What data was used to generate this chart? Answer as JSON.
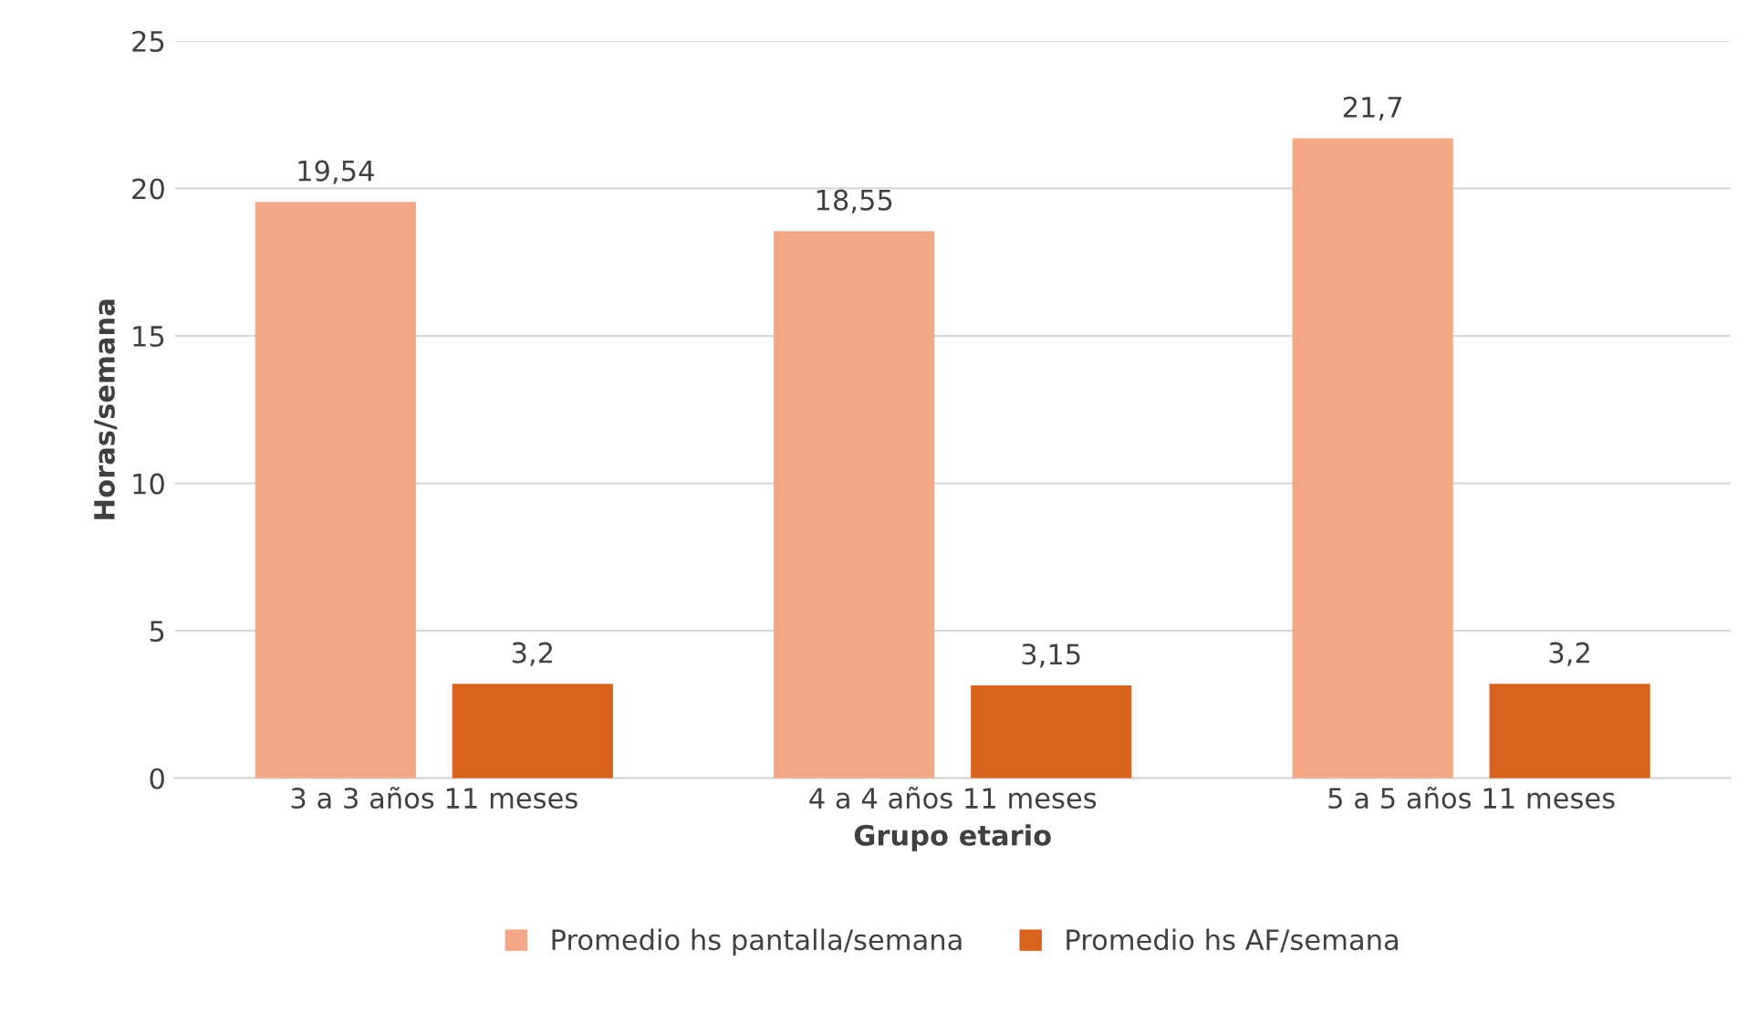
{
  "chart_data": {
    "type": "bar",
    "xlabel": "Grupo etario",
    "ylabel": "Horas/semana",
    "categories": [
      "3 a 3 años 11 meses",
      "4 a 4 años 11 meses",
      "5 a 5 años 11 meses"
    ],
    "series": [
      {
        "name": "Promedio hs pantalla/semana",
        "color": "#f2a887",
        "values": [
          19.54,
          18.55,
          21.7
        ],
        "value_labels": [
          "19,54",
          "18,55",
          "21,7"
        ]
      },
      {
        "name": "Promedio hs AF/semana",
        "color": "#d8631f",
        "values": [
          3.2,
          3.15,
          3.2
        ],
        "value_labels": [
          "3,2",
          "3,15",
          "3,2"
        ]
      }
    ],
    "ylim": [
      0,
      25
    ],
    "yticks": [
      0,
      5,
      10,
      15,
      20,
      25
    ],
    "grid": "y",
    "legend": "bottom"
  }
}
